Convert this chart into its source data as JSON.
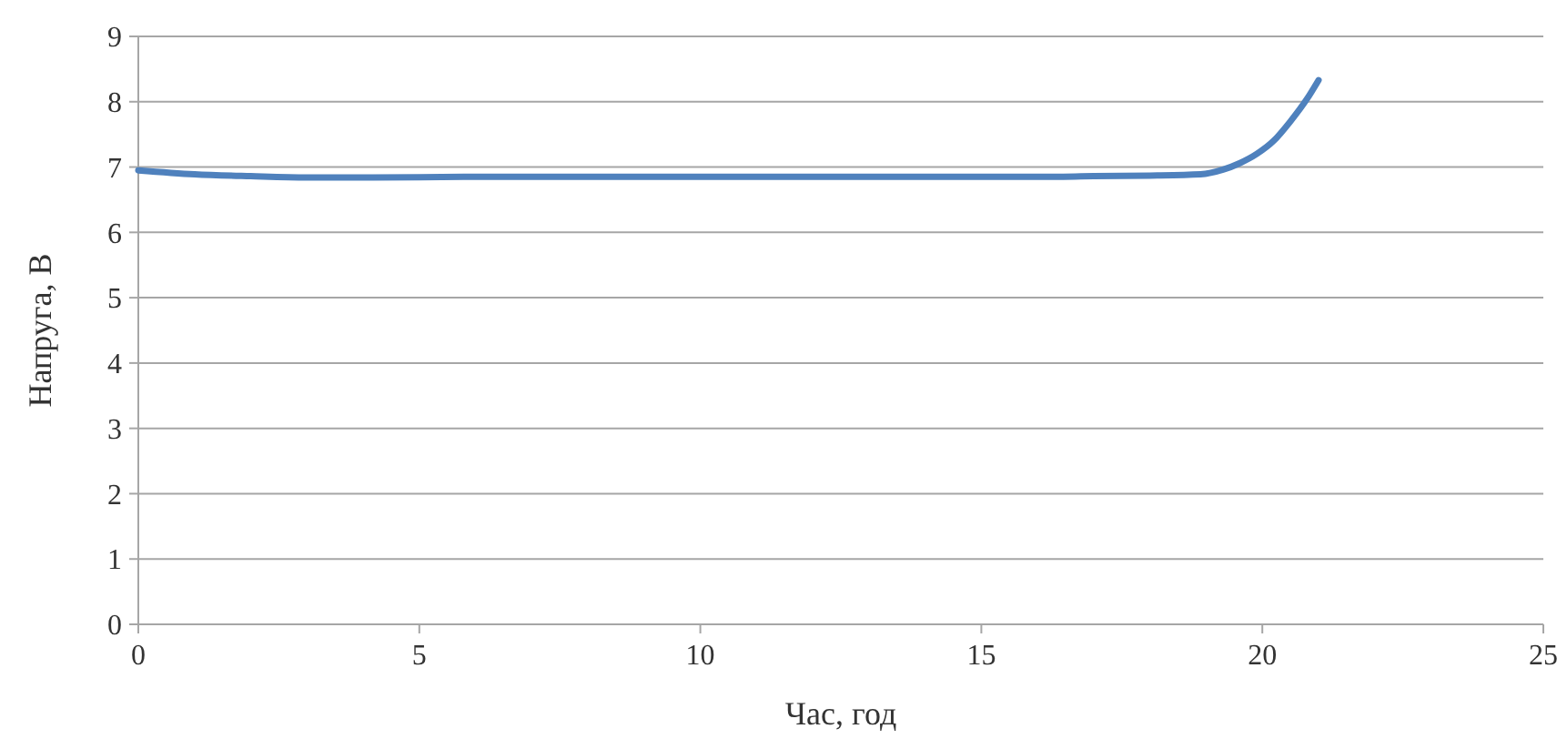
{
  "chart_data": {
    "type": "line",
    "xlabel": "Час, год",
    "ylabel": "Напруга, В",
    "xlim": [
      0,
      25
    ],
    "xticks": [
      0,
      5,
      10,
      15,
      20,
      25
    ],
    "ylim": [
      0,
      9
    ],
    "yticks": [
      0,
      1,
      2,
      3,
      4,
      5,
      6,
      7,
      8,
      9
    ],
    "grid": "y",
    "marker": "none",
    "line_style": "solid",
    "series": [
      {
        "color": "#4f81bd",
        "x": [
          0,
          1,
          2,
          3,
          4,
          6,
          8,
          10,
          12,
          14,
          16,
          17,
          18,
          18.9,
          19.3,
          19.6,
          19.9,
          20.2,
          20.5,
          20.8,
          21
        ],
        "values": [
          6.95,
          6.89,
          6.86,
          6.84,
          6.84,
          6.85,
          6.85,
          6.85,
          6.85,
          6.85,
          6.85,
          6.86,
          6.87,
          6.89,
          6.96,
          7.06,
          7.2,
          7.4,
          7.7,
          8.05,
          8.33
        ]
      }
    ]
  }
}
